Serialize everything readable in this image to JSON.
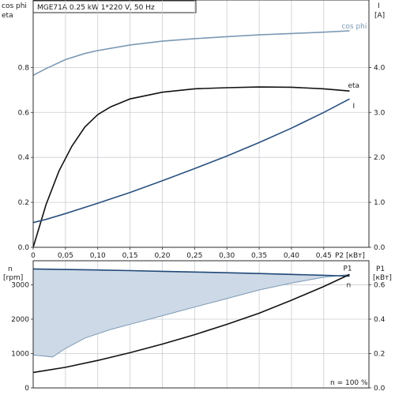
{
  "header": {
    "title": "MGE71A   0.25 kW   1*220 V, 50 Hz"
  },
  "colors": {
    "cosphi": "#7c99b5",
    "eta": "#111111",
    "current": "#2a5180",
    "speed": "#1f4877",
    "power": "#111111",
    "fill": "#cdd9e6"
  },
  "chart_data": [
    {
      "type": "line",
      "name": "top",
      "x_ticks": [
        "0",
        "0,05",
        "0,10",
        "0,15",
        "0,20",
        "0,25",
        "0,30",
        "0,35",
        "0,40",
        "0,45"
      ],
      "xlabel": "P2 [кВт]",
      "xlim": [
        0,
        0.52
      ],
      "left_axis": {
        "label1": "cos phi",
        "label2": "eta",
        "ylim": [
          0,
          1.1
        ],
        "ticks": [
          "0.0",
          "0.2",
          "0.4",
          "0.6",
          "0.8"
        ]
      },
      "right_axis": {
        "label1": "I",
        "label2": "[A]",
        "ylim": [
          0,
          5.5
        ],
        "ticks": [
          "0.0",
          "1.0",
          "2.0",
          "3.0",
          "4.0"
        ]
      },
      "grid": true,
      "series": [
        {
          "name": "cos phi",
          "axis": "left",
          "x": [
            0.0,
            0.02,
            0.05,
            0.08,
            0.1,
            0.15,
            0.2,
            0.25,
            0.3,
            0.35,
            0.4,
            0.45,
            0.49
          ],
          "y": [
            0.765,
            0.795,
            0.835,
            0.862,
            0.875,
            0.9,
            0.917,
            0.928,
            0.937,
            0.945,
            0.951,
            0.957,
            0.963
          ]
        },
        {
          "name": "eta",
          "axis": "left",
          "x": [
            0.0,
            0.02,
            0.04,
            0.06,
            0.08,
            0.1,
            0.12,
            0.15,
            0.2,
            0.25,
            0.3,
            0.35,
            0.4,
            0.45,
            0.49
          ],
          "y": [
            0.0,
            0.19,
            0.34,
            0.45,
            0.535,
            0.59,
            0.625,
            0.66,
            0.69,
            0.705,
            0.71,
            0.713,
            0.712,
            0.705,
            0.695
          ]
        },
        {
          "name": "I",
          "axis": "right",
          "x": [
            0.0,
            0.02,
            0.05,
            0.1,
            0.15,
            0.2,
            0.25,
            0.3,
            0.35,
            0.4,
            0.45,
            0.49
          ],
          "y": [
            0.55,
            0.62,
            0.75,
            0.98,
            1.22,
            1.48,
            1.75,
            2.03,
            2.33,
            2.65,
            3.0,
            3.3
          ]
        }
      ]
    },
    {
      "type": "line",
      "name": "bottom",
      "xlim": [
        0,
        0.52
      ],
      "left_axis": {
        "label1": "n",
        "label2": "[rpm]",
        "ylim": [
          0,
          3700
        ],
        "ticks": [
          "0",
          "1000",
          "2000",
          "3000"
        ]
      },
      "right_axis": {
        "label1": "P1",
        "label2": "[кВт]",
        "ylim": [
          0,
          0.74
        ],
        "ticks": [
          "0.0",
          "0.2",
          "0.4",
          "0.6"
        ]
      },
      "grid": true,
      "annotation": "n = 100 %",
      "series": [
        {
          "name": "n",
          "axis": "left",
          "x": [
            0.0,
            0.05,
            0.1,
            0.15,
            0.2,
            0.25,
            0.3,
            0.35,
            0.4,
            0.45,
            0.49
          ],
          "y": [
            3460,
            3445,
            3430,
            3412,
            3393,
            3372,
            3350,
            3327,
            3302,
            3276,
            3252
          ]
        },
        {
          "name": "P1",
          "axis": "right",
          "x": [
            0.0,
            0.05,
            0.1,
            0.15,
            0.2,
            0.25,
            0.3,
            0.35,
            0.4,
            0.45,
            0.49
          ],
          "y": [
            0.09,
            0.12,
            0.16,
            0.205,
            0.255,
            0.31,
            0.37,
            0.435,
            0.51,
            0.59,
            0.66
          ]
        },
        {
          "name": "",
          "axis": "left",
          "role": "shaded-band-lower",
          "x": [
            0.0,
            0.03,
            0.05,
            0.08,
            0.12,
            0.16,
            0.2,
            0.25,
            0.3,
            0.35,
            0.4,
            0.45,
            0.49
          ],
          "y": [
            960,
            900,
            1150,
            1450,
            1700,
            1900,
            2100,
            2350,
            2600,
            2850,
            3050,
            3220,
            3300
          ]
        }
      ]
    }
  ]
}
